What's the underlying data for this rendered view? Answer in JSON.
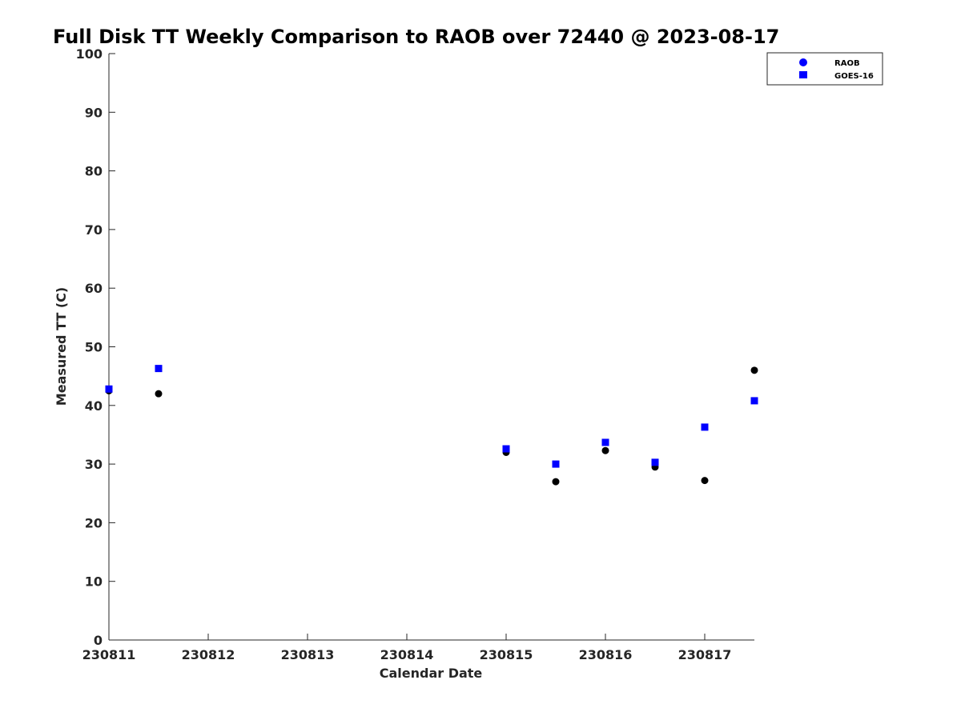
{
  "chart_data": {
    "type": "scatter",
    "title": "Full Disk TT Weekly Comparison to RAOB over 72440 @ 2023-08-17",
    "xlabel": "Calendar Date",
    "ylabel": "Measured TT (C)",
    "xlim": [
      "2023-08-11 00:00",
      "2023-08-17 12:00"
    ],
    "ylim": [
      0,
      100
    ],
    "x_ticks": [
      "230811",
      "230812",
      "230813",
      "230814",
      "230815",
      "230816",
      "230817"
    ],
    "y_ticks": [
      0,
      10,
      20,
      30,
      40,
      50,
      60,
      70,
      80,
      90,
      100
    ],
    "grid": false,
    "legend_position": "top-right",
    "series": [
      {
        "name": "RAOB",
        "marker": "circle",
        "color": "#000000",
        "legend_color": "#0000ff",
        "points": [
          {
            "x": "2023-08-11 00:00",
            "y": 42.5
          },
          {
            "x": "2023-08-11 12:00",
            "y": 42.0
          },
          {
            "x": "2023-08-15 00:00",
            "y": 32.0
          },
          {
            "x": "2023-08-15 12:00",
            "y": 27.0
          },
          {
            "x": "2023-08-16 00:00",
            "y": 32.3
          },
          {
            "x": "2023-08-16 12:00",
            "y": 29.5
          },
          {
            "x": "2023-08-17 00:00",
            "y": 27.2
          },
          {
            "x": "2023-08-17 12:00",
            "y": 46.0
          }
        ]
      },
      {
        "name": "GOES-16",
        "marker": "square",
        "color": "#0000ff",
        "legend_color": "#0000ff",
        "points": [
          {
            "x": "2023-08-11 00:00",
            "y": 42.8
          },
          {
            "x": "2023-08-11 12:00",
            "y": 46.3
          },
          {
            "x": "2023-08-15 00:00",
            "y": 32.6
          },
          {
            "x": "2023-08-15 12:00",
            "y": 30.0
          },
          {
            "x": "2023-08-16 00:00",
            "y": 33.7
          },
          {
            "x": "2023-08-16 12:00",
            "y": 30.3
          },
          {
            "x": "2023-08-17 00:00",
            "y": 36.3
          },
          {
            "x": "2023-08-17 12:00",
            "y": 40.8
          }
        ]
      }
    ]
  }
}
